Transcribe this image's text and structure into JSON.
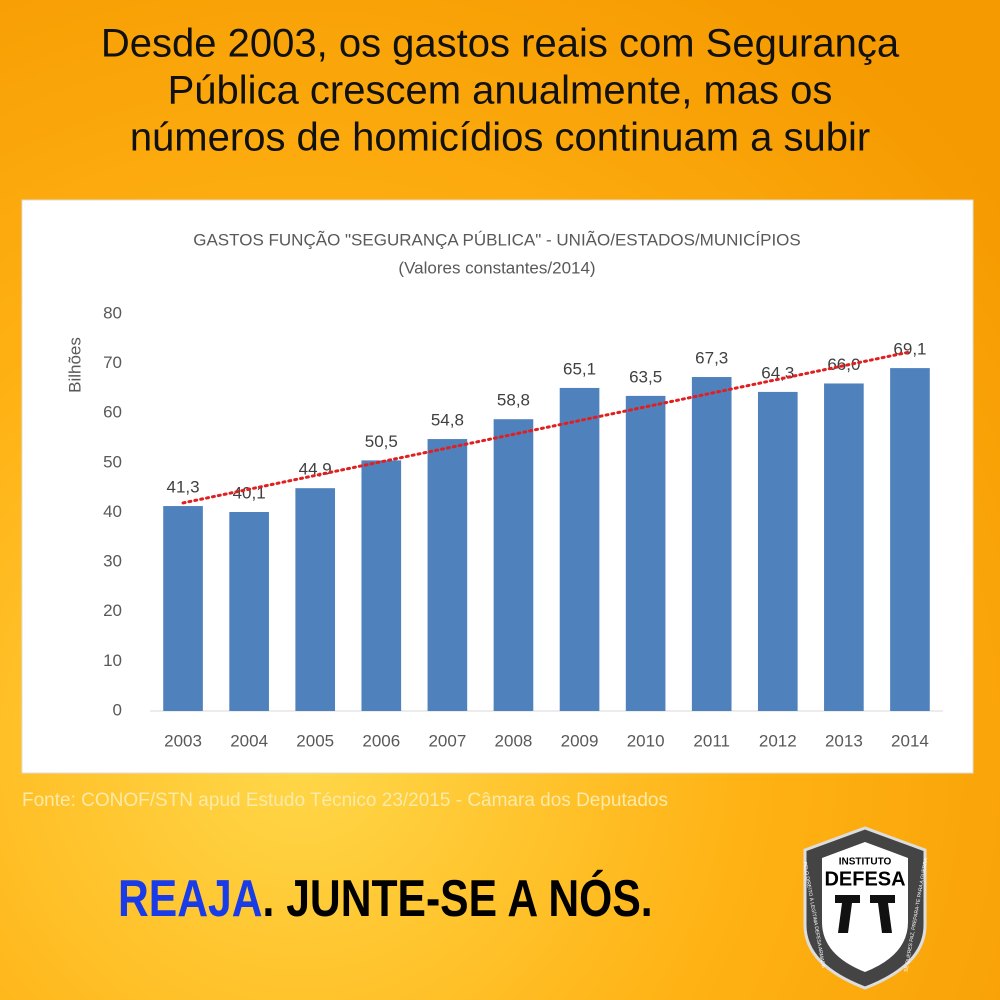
{
  "headline": {
    "lines": [
      "Desde 2003, os gastos reais com Segurança",
      "Pública crescem anualmente, mas os",
      "números de homicídios continuam a subir"
    ]
  },
  "chart_data": {
    "type": "bar",
    "title": "GASTOS  FUNÇÃO \"SEGURANÇA PÚBLICA\" - UNIÃO/ESTADOS/MUNICÍPIOS",
    "subtitle": "(Valores constantes/2014)",
    "y_label": "Bilhões",
    "categories": [
      "2003",
      "2004",
      "2005",
      "2006",
      "2007",
      "2008",
      "2009",
      "2010",
      "2011",
      "2012",
      "2013",
      "2014"
    ],
    "values": [
      41.3,
      40.1,
      44.9,
      50.5,
      54.8,
      58.8,
      65.1,
      63.5,
      67.3,
      64.3,
      66.0,
      69.1
    ],
    "value_labels": [
      "41,3",
      "40,1",
      "44,9",
      "50,5",
      "54,8",
      "58,8",
      "65,1",
      "63,5",
      "67,3",
      "64,3",
      "66,0",
      "69,1"
    ],
    "color": "#4f81bd",
    "ylim": [
      0,
      80
    ],
    "yticks": [
      0,
      10,
      20,
      30,
      40,
      50,
      60,
      70,
      80
    ],
    "grid": false,
    "trendline": true,
    "trendline_color": "#e02020"
  },
  "source": "Fonte: CONOF/STN  apud Estudo Técnico 23/2015 - Câmara dos Deputados",
  "footer": {
    "cta_strong": "REAJA",
    "cta_rest": ". JUNTE-SE A NÓS."
  },
  "logo": {
    "top": "INSTITUTO",
    "name": "DEFESA",
    "left_ring": "PELO DIREITO À LEGÍTIMA DEFESA ARMADA",
    "right_ring": "SE QUERES PAZ, PREPARA-TE PARA A GUERRA"
  }
}
